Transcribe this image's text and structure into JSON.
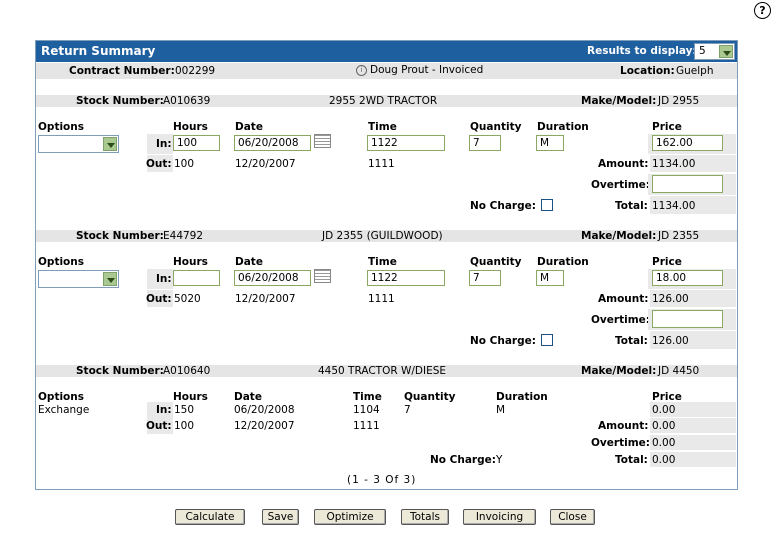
{
  "help": "?",
  "panel": {
    "title": "Return Summary",
    "results_label": "Results to display:",
    "results_value": "5",
    "contract_label": "Contract Number:",
    "contract_value": "002299",
    "customer": "Doug Prout - Invoiced",
    "location_label": "Location:",
    "location_value": "Guelph",
    "pager": "(1 - 3 Of 3)"
  },
  "labels": {
    "stock": "Stock Number:",
    "make": "Make/Model:",
    "options": "Options",
    "hours": "Hours",
    "date": "Date",
    "time": "Time",
    "quantity": "Quantity",
    "duration": "Duration",
    "price": "Price",
    "in": "In:",
    "out": "Out:",
    "amount": "Amount:",
    "overtime": "Overtime:",
    "no_charge": "No Charge:",
    "total": "Total:"
  },
  "items": [
    {
      "stock": "A010639",
      "desc": "2955 2WD TRACTOR",
      "make": "JD 2955",
      "in_hours": "100",
      "in_date": "06/20/2008",
      "in_time": "1122",
      "quantity": "7",
      "duration": "M",
      "price": "162.00",
      "out_hours": "100",
      "out_date": "12/20/2007",
      "out_time": "1111",
      "amount": "1134.00",
      "overtime": "",
      "total": "1134.00"
    },
    {
      "stock": "E44792",
      "desc": "JD 2355 (GUILDWOOD)",
      "make": "JD 2355",
      "in_hours": "",
      "in_date": "06/20/2008",
      "in_time": "1122",
      "quantity": "7",
      "duration": "M",
      "price": "18.00",
      "out_hours": "5020",
      "out_date": "12/20/2007",
      "out_time": "1111",
      "amount": "126.00",
      "overtime": "",
      "total": "126.00"
    },
    {
      "stock": "A010640",
      "desc": "4450 TRACTOR W/DIESE",
      "make": "JD 4450",
      "option": "Exchange",
      "in_hours": "150",
      "in_date": "06/20/2008",
      "in_time": "1104",
      "quantity": "7",
      "duration": "M",
      "price": "0.00",
      "out_hours": "100",
      "out_date": "12/20/2007",
      "out_time": "1111",
      "amount": "0.00",
      "overtime": "0.00",
      "no_charge": "Y",
      "total": "0.00"
    }
  ],
  "buttons": {
    "calculate": "Calculate",
    "save": "Save",
    "optimize": "Optimize",
    "totals": "Totals",
    "invoicing": "Invoicing",
    "close": "Close"
  }
}
